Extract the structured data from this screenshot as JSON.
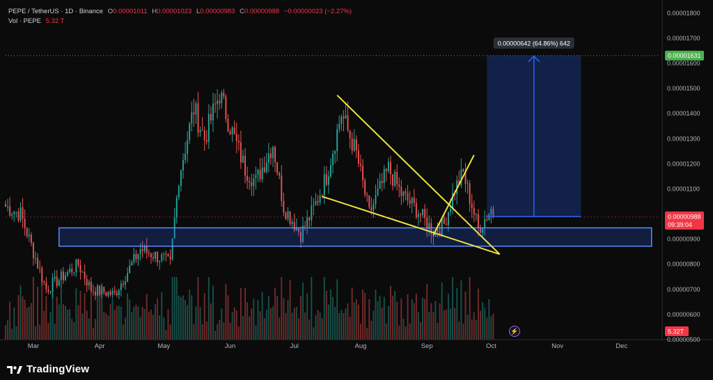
{
  "header": {
    "symbol": "PEPE / TetherUS · 1D · Binance",
    "open_label": "O",
    "open": "0.00001011",
    "high_label": "H",
    "high": "0.00001023",
    "low_label": "L",
    "low": "0.00000983",
    "close_label": "C",
    "close": "0.00000988",
    "change": "−0.00000023 (−2.27%)",
    "volume_label": "Vol · PEPE",
    "volume": "5.32 T"
  },
  "brand": {
    "name": "TradingView",
    "icon": "tradingview-logo-icon"
  },
  "colors": {
    "background": "#0b0b0b",
    "up": "#26a69a",
    "down": "#ef5350",
    "trendline": "#f0e442",
    "zone": "#2962ff",
    "price_badge": "#f23645",
    "target_badge": "#4caf50"
  },
  "chart_data": {
    "type": "candlestick",
    "y_axis": {
      "ticks": [
        "0.00001800",
        "0.00001700",
        "0.00001600",
        "0.00001500",
        "0.00001400",
        "0.00001300",
        "0.00001200",
        "0.00001100",
        "0.00001000",
        "0.00000900",
        "0.00000800",
        "0.00000700",
        "0.00000600",
        "0.00000500"
      ],
      "range": [
        5e-06,
        1.83e-05
      ]
    },
    "x_axis": {
      "ticks": [
        "Mar",
        "Apr",
        "May",
        "Jun",
        "Jul",
        "Aug",
        "Sep",
        "Oct",
        "Nov",
        "Dec"
      ],
      "start": "2024-02-17",
      "end": "2024-12-18"
    },
    "current_price": {
      "value": "0.00000988",
      "countdown": "09:39:04"
    },
    "target": {
      "value": "0.00001631",
      "label": "0.00000642 (64.86%) 642"
    },
    "volume_badge": "5.32T",
    "support_zone": {
      "from": "2024-03-13",
      "to": "2024-12-15",
      "low": 8.72e-06,
      "high": 9.45e-06
    },
    "trendlines": [
      {
        "x1": "2024-07-21",
        "y1": 1.473e-05,
        "x2": "2024-10-05",
        "y2": 8.4e-06
      },
      {
        "x1": "2024-07-14",
        "y1": 1.07e-05,
        "x2": "2024-10-05",
        "y2": 8.4e-06
      },
      {
        "x1": "2024-09-04",
        "y1": 9.17e-06,
        "x2": "2024-09-23",
        "y2": 1.235e-05
      }
    ],
    "projection": {
      "from": "2024-09-29",
      "to": "2024-11-12",
      "base": 9.9e-06,
      "top": 1.631e-05
    },
    "anchors": [
      [
        "2024-02-17",
        1.03e-05
      ],
      [
        "2024-02-24",
        1e-05
      ],
      [
        "2024-03-01",
        8.5e-06
      ],
      [
        "2024-03-07",
        7e-06
      ],
      [
        "2024-03-13",
        7.4e-06
      ],
      [
        "2024-03-22",
        8e-06
      ],
      [
        "2024-03-28",
        7e-06
      ],
      [
        "2024-04-08",
        6.8e-06
      ],
      [
        "2024-04-20",
        8.6e-06
      ],
      [
        "2024-05-01",
        8.2e-06
      ],
      [
        "2024-05-04",
        8e-06
      ],
      [
        "2024-05-08",
        1.15e-05
      ],
      [
        "2024-05-15",
        1.42e-05
      ],
      [
        "2024-05-20",
        1.3e-05
      ],
      [
        "2024-05-27",
        1.48e-05
      ],
      [
        "2024-06-01",
        1.35e-05
      ],
      [
        "2024-06-08",
        1.18e-05
      ],
      [
        "2024-06-13",
        1.13e-05
      ],
      [
        "2024-06-21",
        1.28e-05
      ],
      [
        "2024-06-26",
        1.03e-05
      ],
      [
        "2024-07-04",
        9.2e-06
      ],
      [
        "2024-07-10",
        1.02e-05
      ],
      [
        "2024-07-16",
        1.15e-05
      ],
      [
        "2024-07-23",
        1.4e-05
      ],
      [
        "2024-07-30",
        1.24e-05
      ],
      [
        "2024-08-05",
        1e-05
      ],
      [
        "2024-08-14",
        1.18e-05
      ],
      [
        "2024-08-20",
        1.08e-05
      ],
      [
        "2024-08-27",
        1.02e-05
      ],
      [
        "2024-09-04",
        9.3e-06
      ],
      [
        "2024-09-09",
        9.6e-06
      ],
      [
        "2024-09-14",
        1.1e-05
      ],
      [
        "2024-09-18",
        1.16e-05
      ],
      [
        "2024-09-25",
        9.4e-06
      ],
      [
        "2024-10-01",
        1.02e-05
      ],
      [
        "2024-10-02",
        9.9e-06
      ]
    ]
  }
}
